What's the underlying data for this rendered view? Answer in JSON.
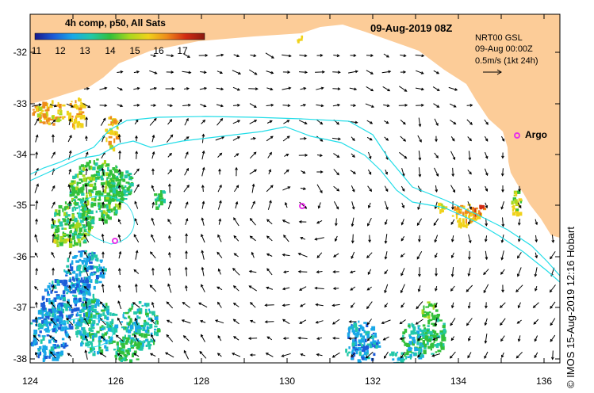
{
  "title": "09-Aug-2019 08Z",
  "colorbar": {
    "label": "4h comp, p50, All Sats",
    "ticks": [
      "11",
      "12",
      "13",
      "14",
      "15",
      "16",
      "17"
    ],
    "colors": [
      "#1a1a8c",
      "#1c5cd8",
      "#19a8e8",
      "#22c8a8",
      "#33c03a",
      "#a8d81e",
      "#f0d21a",
      "#ee8b1a",
      "#d22a12",
      "#8a1a10"
    ]
  },
  "info": {
    "product": "NRT00 GSL",
    "date": "09-Aug 00:00Z",
    "scale_text": "0.5m/s (1kt 24h)"
  },
  "legend": {
    "argo_label": "Argo",
    "argo_color": "#e832e8"
  },
  "axes": {
    "y_labels": [
      "-32",
      "-33",
      "-34",
      "-35",
      "-36",
      "-37",
      "-38"
    ],
    "x_labels": [
      "124",
      "126",
      "128",
      "130",
      "132",
      "134",
      "136"
    ]
  },
  "colors": {
    "land": "#fccc98",
    "isobath": "#22dde8",
    "ocean": "#ffffff"
  },
  "copyright": "© IMOS 15-Aug-2019 12:16 Hobart"
}
